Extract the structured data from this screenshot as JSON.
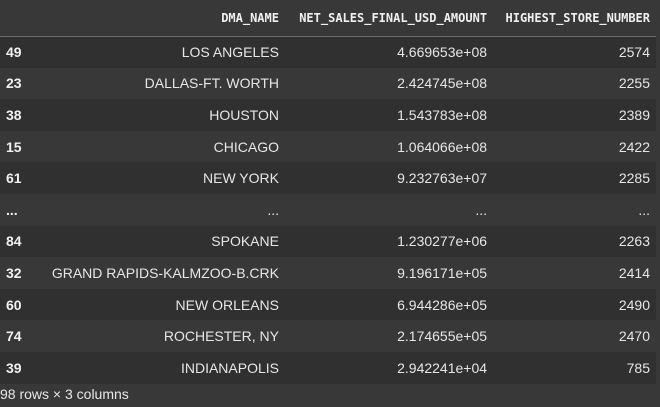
{
  "table": {
    "columns": [
      "DMA_NAME",
      "NET_SALES_FINAL_USD_AMOUNT",
      "HIGHEST_STORE_NUMBER"
    ],
    "rows": [
      {
        "index": "49",
        "cells": [
          "LOS ANGELES",
          "4.669653e+08",
          "2574"
        ]
      },
      {
        "index": "23",
        "cells": [
          "DALLAS-FT. WORTH",
          "2.424745e+08",
          "2255"
        ]
      },
      {
        "index": "38",
        "cells": [
          "HOUSTON",
          "1.543783e+08",
          "2389"
        ]
      },
      {
        "index": "15",
        "cells": [
          "CHICAGO",
          "1.064066e+08",
          "2422"
        ]
      },
      {
        "index": "61",
        "cells": [
          "NEW YORK",
          "9.232763e+07",
          "2285"
        ]
      },
      {
        "index": "...",
        "cells": [
          "...",
          "...",
          "..."
        ]
      },
      {
        "index": "84",
        "cells": [
          "SPOKANE",
          "1.230277e+06",
          "2263"
        ]
      },
      {
        "index": "32",
        "cells": [
          "GRAND RAPIDS-KALMZOO-B.CRK",
          "9.196171e+05",
          "2414"
        ]
      },
      {
        "index": "60",
        "cells": [
          "NEW ORLEANS",
          "6.944286e+05",
          "2490"
        ]
      },
      {
        "index": "74",
        "cells": [
          "ROCHESTER, NY",
          "2.174655e+05",
          "2470"
        ]
      },
      {
        "index": "39",
        "cells": [
          "INDIANAPOLIS",
          "2.942241e+04",
          "785"
        ]
      }
    ]
  },
  "footer": {
    "shape_text": "98 rows × 3 columns"
  }
}
